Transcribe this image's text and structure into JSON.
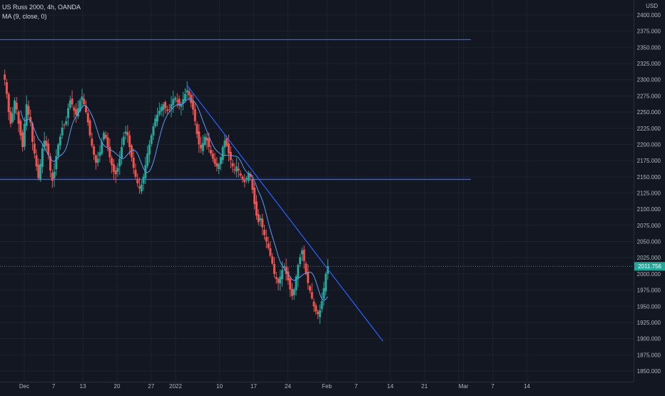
{
  "header": {
    "symbol_line": "US Russ 2000, 4h, OANDA",
    "indicator_line": "MA (9, close, 0)",
    "currency": "USD"
  },
  "price_label": "2011.756",
  "colors": {
    "background": "#131722",
    "up": "#26a69a",
    "down": "#ef5350",
    "ma": "#5b9cf6",
    "trendline": "#2962ff",
    "grid": "#1e222d",
    "axis_text": "#b2b5be",
    "price_badge": "#26a69a"
  },
  "chart_data": {
    "type": "candlestick",
    "title": "US Russ 2000, 4h, OANDA",
    "indicator": "MA (9, close, 0)",
    "ylim": [
      1840,
      2410
    ],
    "y_ticks": [
      1850,
      1875,
      1900,
      1925,
      1950,
      1975,
      2000,
      2025,
      2050,
      2075,
      2100,
      2125,
      2150,
      2175,
      2200,
      2225,
      2250,
      2275,
      2300,
      2325,
      2350,
      2375,
      2400
    ],
    "y_tick_labels": [
      "1850.000",
      "1875.000",
      "1900.000",
      "1925.000",
      "1950.000",
      "1975.000",
      "2000.000",
      "2025.000",
      "2050.000",
      "2075.000",
      "2100.000",
      "2125.000",
      "2150.000",
      "2175.000",
      "2200.000",
      "2225.000",
      "2250.000",
      "2275.000",
      "2300.000",
      "2325.000",
      "2350.000",
      "2375.000",
      "2400.000"
    ],
    "x_ticks": [
      {
        "label": "Dec",
        "day": 0
      },
      {
        "label": "7",
        "day": 6
      },
      {
        "label": "13",
        "day": 12
      },
      {
        "label": "20",
        "day": 19
      },
      {
        "label": "27",
        "day": 26
      },
      {
        "label": "2022",
        "day": 31
      },
      {
        "label": "10",
        "day": 40
      },
      {
        "label": "17",
        "day": 47
      },
      {
        "label": "24",
        "day": 54
      },
      {
        "label": "Feb",
        "day": 62
      },
      {
        "label": "7",
        "day": 68
      },
      {
        "label": "14",
        "day": 75
      },
      {
        "label": "21",
        "day": 82
      },
      {
        "label": "28",
        "day": 89
      },
      {
        "label": "Mar",
        "day": 90
      },
      {
        "label": "7",
        "day": 96
      },
      {
        "label": "14",
        "day": 103
      }
    ],
    "x_tick_labels_shown": [
      "Dec",
      "7",
      "13",
      "20",
      "27",
      "2022",
      "10",
      "17",
      "24",
      "Feb",
      "7",
      "14",
      "21",
      "Mar",
      "7",
      "14"
    ],
    "x_range_days": [
      -4,
      107
    ],
    "horizontal_lines": [
      2362,
      2146
    ],
    "trendline": {
      "start": {
        "day": 33.4,
        "price": 2291
      },
      "end": {
        "day": 73.5,
        "price": 1896
      }
    },
    "last_price": 2011.756,
    "closes": [
      2300,
      2278,
      2250,
      2232,
      2248,
      2268,
      2254,
      2232,
      2214,
      2196,
      2232,
      2262,
      2246,
      2234,
      2204,
      2186,
      2166,
      2148,
      2170,
      2194,
      2206,
      2198,
      2184,
      2160,
      2144,
      2158,
      2182,
      2200,
      2212,
      2226,
      2230,
      2236,
      2256,
      2268,
      2262,
      2252,
      2246,
      2256,
      2268,
      2274,
      2262,
      2250,
      2234,
      2214,
      2198,
      2184,
      2172,
      2178,
      2188,
      2204,
      2218,
      2210,
      2196,
      2180,
      2168,
      2158,
      2154,
      2164,
      2178,
      2196,
      2212,
      2220,
      2214,
      2196,
      2180,
      2164,
      2150,
      2140,
      2132,
      2138,
      2150,
      2168,
      2186,
      2200,
      2214,
      2228,
      2240,
      2246,
      2252,
      2258,
      2262,
      2256,
      2252,
      2254,
      2262,
      2270,
      2272,
      2266,
      2260,
      2262,
      2270,
      2278,
      2284,
      2276,
      2264,
      2254,
      2236,
      2216,
      2200,
      2194,
      2202,
      2212,
      2206,
      2196,
      2186,
      2178,
      2170,
      2166,
      2170,
      2180,
      2196,
      2206,
      2198,
      2186,
      2176,
      2166,
      2160,
      2166,
      2160,
      2152,
      2146,
      2142,
      2148,
      2156,
      2150,
      2130,
      2108,
      2090,
      2080,
      2086,
      2072,
      2060,
      2050,
      2040,
      2028,
      2016,
      2000,
      1992,
      1986,
      1996,
      2006,
      2012,
      2000,
      1990,
      1976,
      1966,
      1976,
      1996,
      2014,
      2026,
      2036,
      2020,
      2000,
      1986,
      1974,
      1962,
      1950,
      1942,
      1938,
      1944,
      1958,
      1978,
      2000,
      2012
    ]
  }
}
